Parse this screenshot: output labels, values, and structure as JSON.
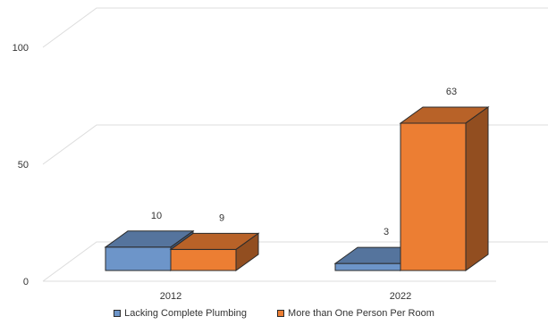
{
  "chart_data": {
    "type": "bar",
    "style": "3d-clustered-column",
    "categories": [
      "2012",
      "2022"
    ],
    "series": [
      {
        "name": "Lacking Complete Plumbing",
        "values": [
          10,
          3
        ],
        "color": "#6d95c9"
      },
      {
        "name": "More than One Person Per Room",
        "values": [
          9,
          63
        ],
        "color": "#ec7e33"
      }
    ],
    "y_ticks": [
      0,
      50,
      100
    ],
    "ylim": [
      0,
      100
    ],
    "grid": true,
    "legend_position": "bottom",
    "data_labels": true
  }
}
